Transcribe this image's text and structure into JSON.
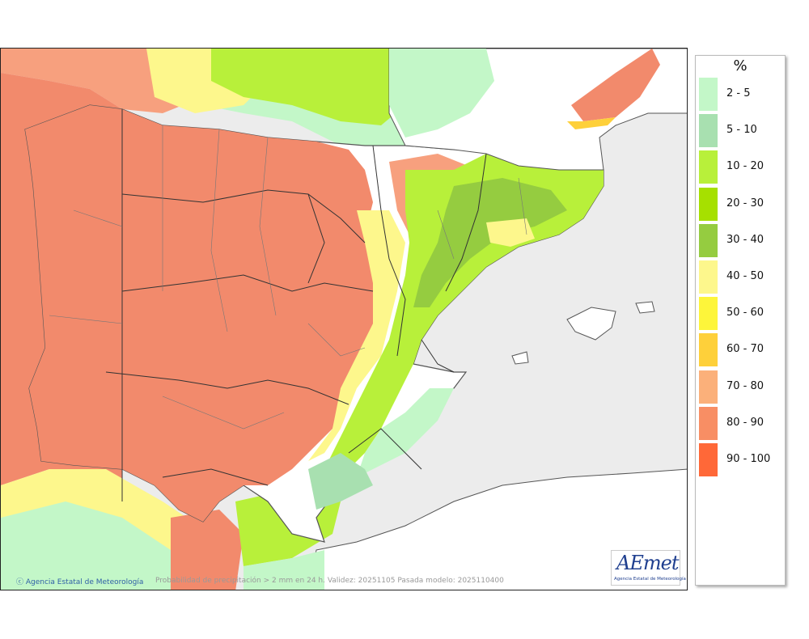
{
  "map": {
    "credit": "Agencia Estatal de Meteorología",
    "caption": "Probabilidad de precipitación > 2 mm en 24 h. Validez: 20251105 Pasada modelo: 2025110400",
    "logo_text": "AEmet",
    "logo_subtitle": "Agencia Estatal de Meteorología"
  },
  "legend": {
    "title": "%",
    "items": [
      {
        "label": "2 - 5",
        "color": "#c3f7c8"
      },
      {
        "label": "5 - 10",
        "color": "#a8e0b0"
      },
      {
        "label": "10 - 20",
        "color": "#b8f03a"
      },
      {
        "label": "20 - 30",
        "color": "#a6e000"
      },
      {
        "label": "30 - 40",
        "color": "#95cc40"
      },
      {
        "label": "40 - 50",
        "color": "#fdf78c"
      },
      {
        "label": "50 - 60",
        "color": "#fdf53a"
      },
      {
        "label": "60 - 70",
        "color": "#fed03a"
      },
      {
        "label": "70 - 80",
        "color": "#fbb07a"
      },
      {
        "label": "80 - 90",
        "color": "#f88e64"
      },
      {
        "label": "90 - 100",
        "color": "#ff6838"
      }
    ]
  },
  "colors": {
    "sea": "#ececec",
    "land_dry": "#ffffff",
    "probability_high": "#f28a6c",
    "border": "#222222"
  }
}
